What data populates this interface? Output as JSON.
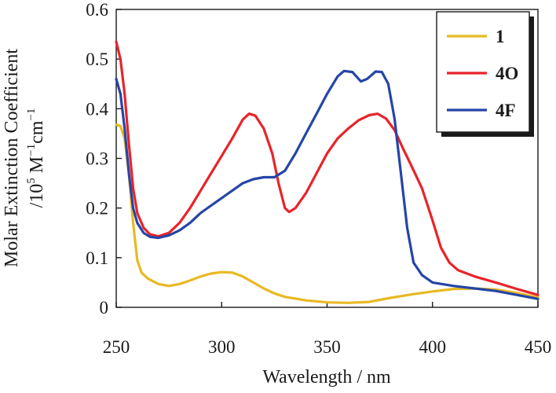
{
  "chart_data": {
    "type": "line",
    "title": "",
    "xlabel": "Wavelength / nm",
    "ylabel_line1": "Molar Extinction Coefficient",
    "ylabel_line2": {
      "prefix": "/10",
      "exp1": "5",
      "mid": " M",
      "exp2": "−1",
      "unit": "cm",
      "exp3": "−1"
    },
    "xlim": [
      250,
      450
    ],
    "ylim": [
      0,
      0.6
    ],
    "xticks": [
      250,
      300,
      350,
      400,
      450
    ],
    "xtick_labels": [
      "250",
      "300",
      "350",
      "400",
      "450"
    ],
    "yticks": [
      0,
      0.1,
      0.2,
      0.3,
      0.4,
      0.5,
      0.6
    ],
    "ytick_labels": [
      "0",
      "0.1",
      "0.2",
      "0.3",
      "0.4",
      "0.5",
      "0.6"
    ],
    "grid": false,
    "legend_position": "top-right",
    "series": [
      {
        "name": "1",
        "color": "#e8b923",
        "points": [
          [
            250,
            0.368
          ],
          [
            252,
            0.365
          ],
          [
            254,
            0.34
          ],
          [
            256,
            0.27
          ],
          [
            258,
            0.17
          ],
          [
            260,
            0.095
          ],
          [
            262,
            0.07
          ],
          [
            265,
            0.058
          ],
          [
            270,
            0.047
          ],
          [
            275,
            0.043
          ],
          [
            280,
            0.047
          ],
          [
            285,
            0.054
          ],
          [
            290,
            0.062
          ],
          [
            295,
            0.068
          ],
          [
            300,
            0.071
          ],
          [
            305,
            0.07
          ],
          [
            310,
            0.062
          ],
          [
            315,
            0.05
          ],
          [
            320,
            0.038
          ],
          [
            325,
            0.028
          ],
          [
            330,
            0.021
          ],
          [
            340,
            0.014
          ],
          [
            350,
            0.01
          ],
          [
            360,
            0.009
          ],
          [
            370,
            0.011
          ],
          [
            375,
            0.015
          ],
          [
            380,
            0.019
          ],
          [
            390,
            0.026
          ],
          [
            400,
            0.032
          ],
          [
            410,
            0.037
          ],
          [
            420,
            0.038
          ],
          [
            430,
            0.036
          ],
          [
            440,
            0.029
          ],
          [
            450,
            0.02
          ]
        ]
      },
      {
        "name": "4O",
        "color": "#e8242a",
        "points": [
          [
            250,
            0.535
          ],
          [
            252,
            0.5
          ],
          [
            254,
            0.43
          ],
          [
            256,
            0.33
          ],
          [
            258,
            0.24
          ],
          [
            260,
            0.19
          ],
          [
            263,
            0.16
          ],
          [
            266,
            0.147
          ],
          [
            270,
            0.143
          ],
          [
            275,
            0.15
          ],
          [
            280,
            0.17
          ],
          [
            285,
            0.2
          ],
          [
            290,
            0.235
          ],
          [
            295,
            0.27
          ],
          [
            300,
            0.305
          ],
          [
            305,
            0.34
          ],
          [
            310,
            0.378
          ],
          [
            313,
            0.39
          ],
          [
            316,
            0.386
          ],
          [
            320,
            0.36
          ],
          [
            324,
            0.31
          ],
          [
            327,
            0.25
          ],
          [
            330,
            0.2
          ],
          [
            332,
            0.192
          ],
          [
            335,
            0.2
          ],
          [
            340,
            0.23
          ],
          [
            345,
            0.27
          ],
          [
            350,
            0.31
          ],
          [
            355,
            0.34
          ],
          [
            360,
            0.36
          ],
          [
            365,
            0.377
          ],
          [
            370,
            0.387
          ],
          [
            374,
            0.39
          ],
          [
            378,
            0.38
          ],
          [
            382,
            0.357
          ],
          [
            386,
            0.32
          ],
          [
            390,
            0.285
          ],
          [
            395,
            0.24
          ],
          [
            400,
            0.175
          ],
          [
            404,
            0.12
          ],
          [
            408,
            0.09
          ],
          [
            412,
            0.075
          ],
          [
            420,
            0.062
          ],
          [
            430,
            0.05
          ],
          [
            440,
            0.037
          ],
          [
            450,
            0.025
          ]
        ]
      },
      {
        "name": "4F",
        "color": "#2545a6",
        "points": [
          [
            250,
            0.46
          ],
          [
            252,
            0.43
          ],
          [
            254,
            0.36
          ],
          [
            256,
            0.27
          ],
          [
            258,
            0.2
          ],
          [
            260,
            0.17
          ],
          [
            263,
            0.15
          ],
          [
            266,
            0.142
          ],
          [
            270,
            0.14
          ],
          [
            275,
            0.145
          ],
          [
            280,
            0.155
          ],
          [
            285,
            0.17
          ],
          [
            290,
            0.19
          ],
          [
            295,
            0.205
          ],
          [
            300,
            0.22
          ],
          [
            305,
            0.235
          ],
          [
            310,
            0.25
          ],
          [
            315,
            0.258
          ],
          [
            320,
            0.262
          ],
          [
            325,
            0.262
          ],
          [
            330,
            0.275
          ],
          [
            335,
            0.31
          ],
          [
            340,
            0.35
          ],
          [
            345,
            0.39
          ],
          [
            350,
            0.43
          ],
          [
            355,
            0.465
          ],
          [
            358,
            0.476
          ],
          [
            362,
            0.474
          ],
          [
            366,
            0.455
          ],
          [
            369,
            0.46
          ],
          [
            373,
            0.475
          ],
          [
            376,
            0.474
          ],
          [
            379,
            0.45
          ],
          [
            382,
            0.38
          ],
          [
            385,
            0.27
          ],
          [
            388,
            0.16
          ],
          [
            391,
            0.09
          ],
          [
            395,
            0.065
          ],
          [
            400,
            0.05
          ],
          [
            410,
            0.043
          ],
          [
            420,
            0.038
          ],
          [
            430,
            0.033
          ],
          [
            440,
            0.025
          ],
          [
            450,
            0.017
          ]
        ]
      }
    ]
  }
}
